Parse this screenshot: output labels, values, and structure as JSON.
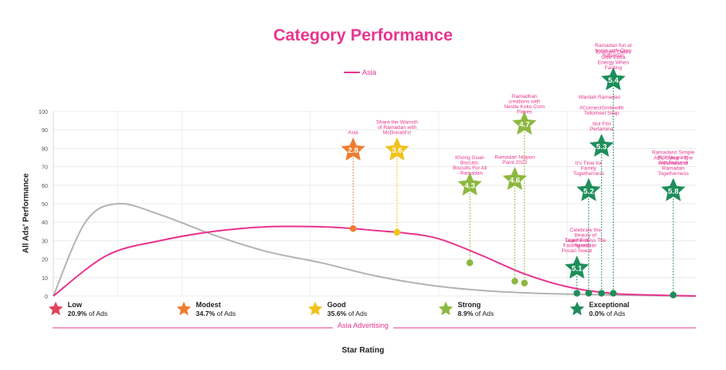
{
  "chart_data": {
    "type": "line",
    "title": "Category Performance",
    "xlabel": "Star Rating",
    "ylabel": "All Ads' Performance",
    "ylim": [
      0,
      100
    ],
    "yticks": [
      0,
      10,
      20,
      30,
      40,
      50,
      60,
      70,
      80,
      90,
      100
    ],
    "grid": true,
    "legend": {
      "position": "top-center",
      "entries": [
        {
          "name": "Asia",
          "color": "#e8358f"
        }
      ]
    },
    "series": [
      {
        "name": "Asia",
        "color": "#e8358f",
        "x": [
          0,
          0.5,
          1.0,
          1.5,
          2.0,
          2.5,
          2.8,
          3.0,
          3.3,
          3.6,
          4.0,
          4.4,
          4.8,
          5.2,
          5.6,
          6.0
        ],
        "y": [
          0,
          22,
          30,
          35,
          37.5,
          37.5,
          36.5,
          35.5,
          34,
          31,
          22,
          12,
          5,
          1.5,
          0.5,
          0
        ]
      },
      {
        "name": "",
        "color": "#b3b3b3",
        "x": [
          0,
          0.3,
          0.6,
          1.0,
          1.5,
          2.0,
          2.5,
          3.0,
          3.5,
          4.0,
          4.5,
          5.0,
          5.5,
          6.0
        ],
        "y": [
          0,
          40,
          50,
          44,
          33,
          24,
          18,
          11,
          6,
          3,
          1.5,
          0.8,
          0.3,
          0
        ]
      }
    ],
    "bands_x": [
      0.6,
      1.2,
      2.4,
      3.6,
      4.8
    ],
    "ads": [
      {
        "rating": "2.8",
        "label": "Asia",
        "x": 2.8,
        "y": 36.5,
        "star_y": 79,
        "color": "#ed7d31"
      },
      {
        "rating": "3.6",
        "label": "Share the Warmth of Ramadan with McDonald's!",
        "x": 3.21,
        "y": 34.5,
        "star_y": 79,
        "color": "#f2c21b"
      },
      {
        "rating": "4.3",
        "label": "Khong Guan Biscuits: Biscuits For All - Ramadan",
        "x": 3.89,
        "y": 18,
        "star_y": 60,
        "color": "#8db83f"
      },
      {
        "rating": "4.6",
        "label": "Ramadan Nippon Paint 2022",
        "x": 4.31,
        "y": 8,
        "star_y": 63,
        "color": "#8db83f"
      },
      {
        "rating": "4.7",
        "label": "Ramadhan creations with Nestle Koko Corn Flakes",
        "x": 4.4,
        "y": 7,
        "star_y": 93,
        "color": "#8db83f"
      },
      {
        "rating": "5.1",
        "label": "Learn Full Fasting with Pocari Sweat",
        "x": 4.89,
        "y": 1.5,
        "star_y": 15,
        "color": "#1e8e5a"
      },
      {
        "rating": "5.2",
        "label": "It's Time for Family Togetherness",
        "x": 5.0,
        "y": 1.5,
        "star_y": 57,
        "color": "#1e8e5a"
      },
      {
        "rating": "5.3",
        "label": "Idul Fitri Pertamina",
        "x": 5.12,
        "y": 1.5,
        "star_y": 81,
        "color": "#1e8e5a"
      },
      {
        "rating": "5.4",
        "label": "Energen Dates Give Extra Energy When Fasting",
        "x": 5.23,
        "y": 1.5,
        "star_y": 117,
        "color": "#1e8e5a"
      },
      {
        "rating": "5.8",
        "label": "ABC Syrup - The Freshness of Ramadan Togetherness",
        "x": 5.79,
        "y": 0.5,
        "star_y": 57,
        "color": "#1e8e5a"
      }
    ],
    "extra_labels": [
      {
        "text": "Celebrate the Beauty of Togetherness The Ramadan",
        "x": 4.97,
        "y_top": 35
      },
      {
        "text": "Wardah Ramadan",
        "x": 5.1,
        "y_top": 107
      },
      {
        "text": "#ConnectSmilewith Tellomeel Sitap",
        "x": 5.12,
        "y_top": 101
      },
      {
        "text": "Ramadan fun at home with Oreo Selection",
        "x": 5.23,
        "y_top": 135
      },
      {
        "text": "Ramadan# Simple Full Meaning with Indomie",
        "x": 5.79,
        "y_top": 77
      }
    ]
  },
  "tiers": [
    {
      "name": "Low",
      "pct": "20.9%",
      "suffix": " of Ads",
      "color": "#e0445c"
    },
    {
      "name": "Modest",
      "pct": "34.7%",
      "suffix": " of Ads",
      "color": "#ed7d31"
    },
    {
      "name": "Good",
      "pct": "35.6%",
      "suffix": " of Ads",
      "color": "#f2c21b"
    },
    {
      "name": "Strong",
      "pct": "8.9%",
      "suffix": " of Ads",
      "color": "#8db83f"
    },
    {
      "name": "Exceptional",
      "pct": "0.0%",
      "suffix": " of Ads",
      "color": "#1e8e5a"
    }
  ],
  "footer_label": "Asia Advertising"
}
